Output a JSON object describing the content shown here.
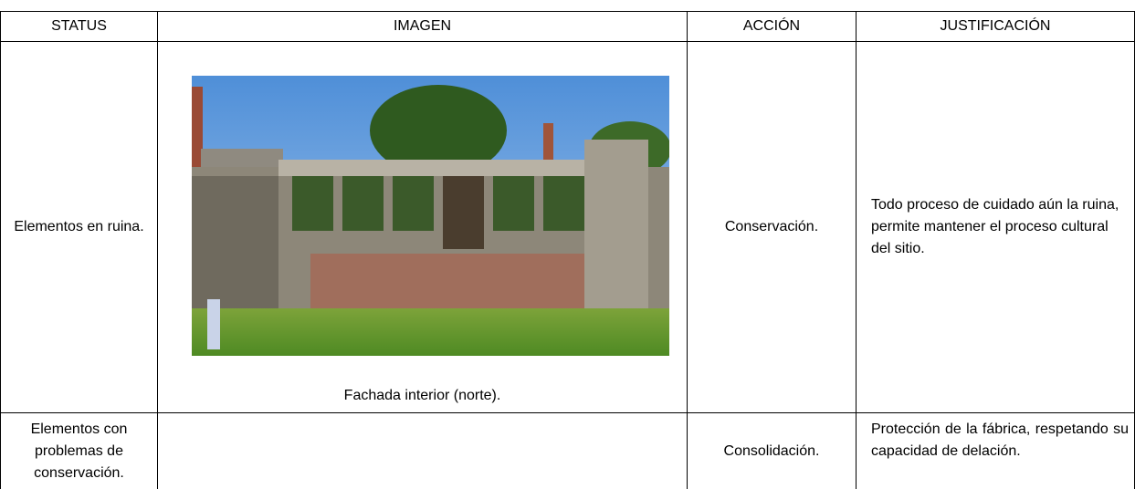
{
  "table": {
    "header": [
      "STATUS",
      "IMAGEN",
      "ACCIÓN",
      "JUSTIFICACIÓN"
    ],
    "rows": [
      {
        "status": "Elementos en ruina.",
        "caption": "Fachada interior (norte).",
        "accion": "Conservación.",
        "justificacion": "Todo proceso de cuidado aún la ruina, permite mantener el proceso cultural del sitio."
      },
      {
        "status": "Elementos con problemas de conservación.",
        "accion": "Consolidación.",
        "justificacion": "Protección de la fábrica, respetando su capacidad de delación."
      }
    ]
  }
}
